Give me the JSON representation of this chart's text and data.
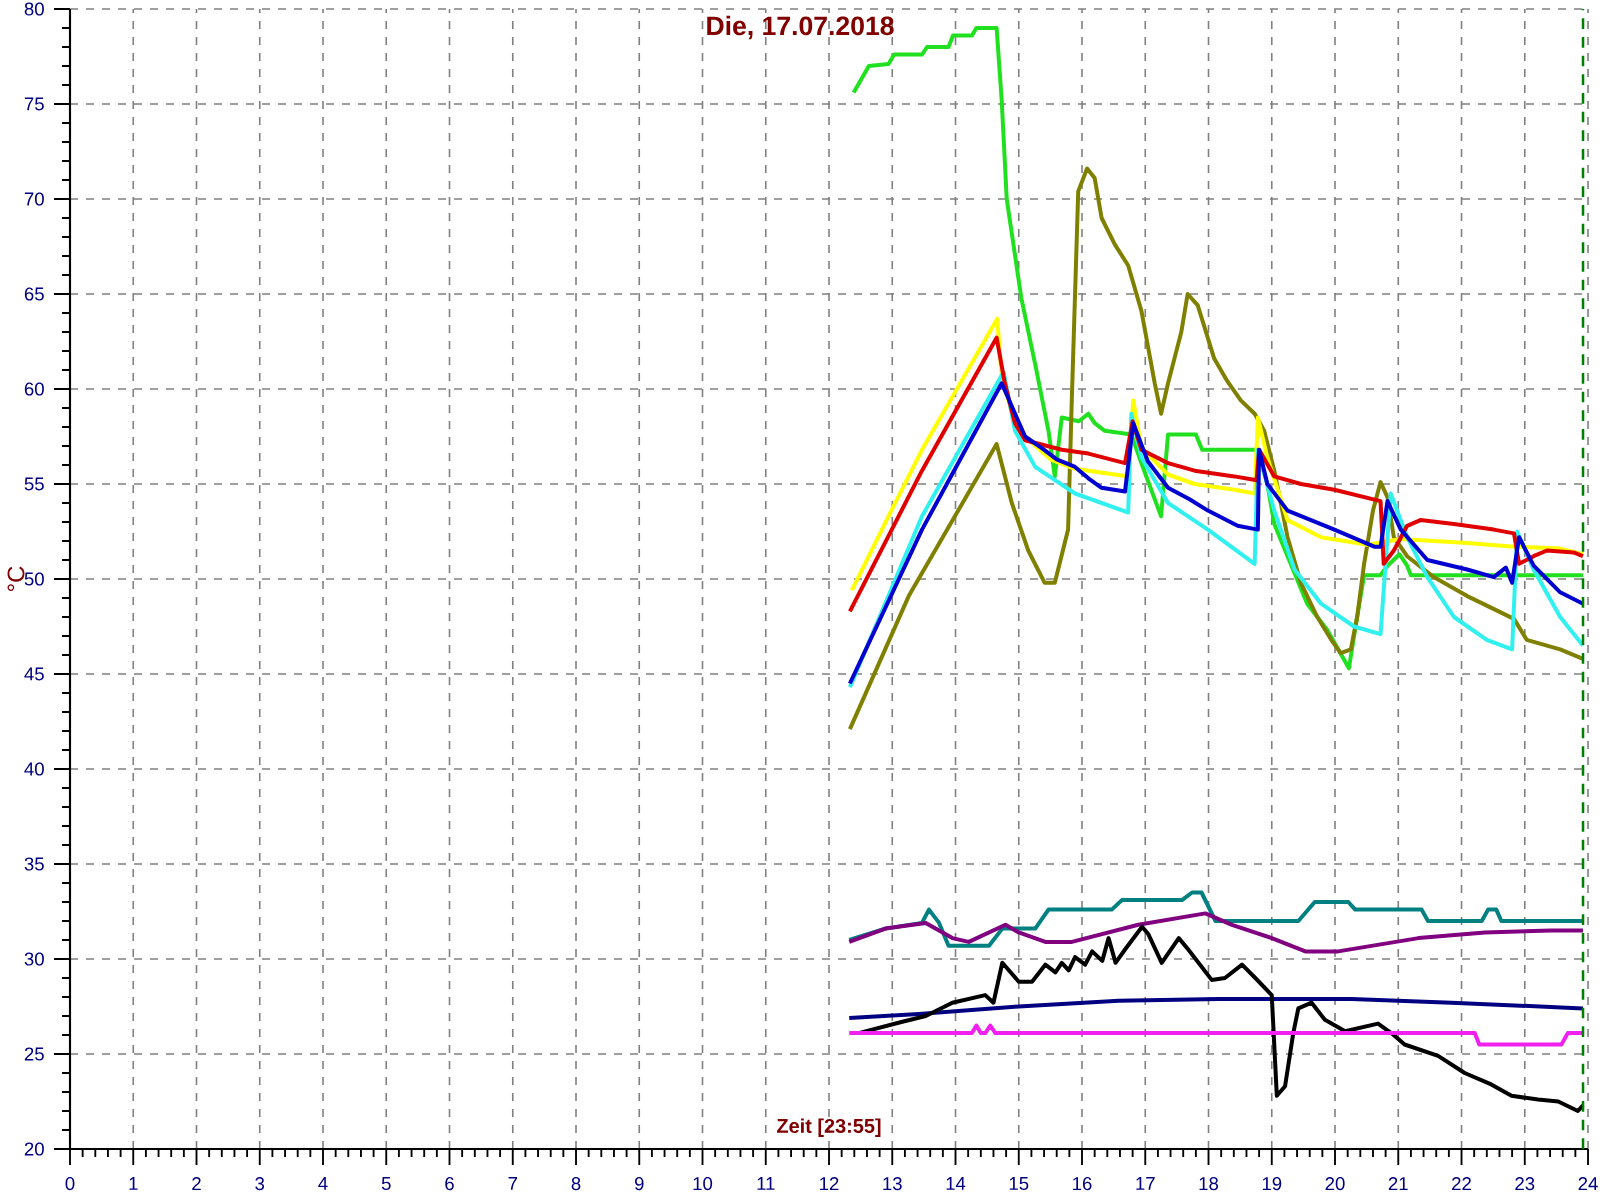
{
  "chart_data": {
    "type": "line",
    "title": "Die, 17.07.2018",
    "xlabel": "Zeit [23:55]",
    "ylabel": "°C",
    "xlim": [
      0,
      24
    ],
    "xticks": [
      0,
      1,
      2,
      3,
      4,
      5,
      6,
      7,
      8,
      9,
      10,
      11,
      12,
      13,
      14,
      15,
      16,
      17,
      18,
      19,
      20,
      21,
      22,
      23,
      24
    ],
    "ylim": [
      20,
      80
    ],
    "yticks": [
      20,
      25,
      30,
      35,
      40,
      45,
      50,
      55,
      60,
      65,
      70,
      75,
      80
    ],
    "grid": true,
    "ref_lines": [
      {
        "axis": "x",
        "value": 23.92,
        "color": "#008000",
        "line_style": "dashed"
      }
    ],
    "series": [
      {
        "color": "#20e020",
        "x": [
          12.39,
          12.63,
          12.94,
          13.03,
          13.47,
          13.55,
          13.89,
          13.96,
          14.26,
          14.33,
          14.65,
          14.73,
          14.81,
          15.04,
          15.26,
          15.47,
          15.57,
          15.68,
          15.95,
          16.1,
          16.2,
          16.36,
          16.78,
          16.95,
          17.25,
          17.36,
          17.8,
          17.9,
          18.78,
          18.93,
          19.04,
          19.25,
          19.56,
          19.88,
          20.22,
          20.32,
          20.46,
          20.72,
          20.83,
          21.02,
          21.14,
          21.2,
          23.92
        ],
        "values": [
          75.6,
          77.0,
          77.1,
          77.6,
          77.6,
          78.0,
          78.0,
          78.6,
          78.6,
          79.0,
          79.0,
          75.2,
          70.0,
          64.8,
          61.3,
          57.8,
          55.4,
          58.5,
          58.3,
          58.7,
          58.2,
          57.8,
          57.6,
          56.0,
          53.3,
          57.6,
          57.6,
          56.8,
          56.8,
          55.0,
          52.9,
          51.2,
          48.7,
          47.3,
          45.3,
          47.4,
          50.2,
          50.2,
          50.7,
          51.3,
          50.7,
          50.2,
          50.2
        ]
      },
      {
        "color": "#808000",
        "x": [
          12.33,
          13.26,
          14.65,
          14.89,
          15.15,
          15.41,
          15.57,
          15.78,
          15.84,
          15.94,
          16.08,
          16.2,
          16.31,
          16.52,
          16.73,
          16.94,
          17.15,
          17.25,
          17.36,
          17.57,
          17.67,
          17.83,
          18.09,
          18.3,
          18.51,
          18.73,
          18.88,
          19.04,
          19.25,
          19.46,
          19.72,
          19.94,
          20.09,
          20.25,
          20.35,
          20.46,
          20.6,
          20.72,
          20.83,
          20.93,
          21.14,
          21.56,
          22.09,
          22.4,
          22.83,
          23.03,
          23.56,
          23.92
        ],
        "values": [
          42.1,
          49.1,
          57.1,
          54.0,
          51.5,
          49.8,
          49.8,
          52.6,
          59.6,
          70.4,
          71.6,
          71.1,
          69.0,
          67.6,
          66.5,
          64.1,
          60.3,
          58.7,
          60.3,
          63.0,
          65.0,
          64.4,
          61.6,
          60.4,
          59.4,
          58.7,
          57.8,
          55.7,
          52.2,
          49.8,
          48.0,
          46.8,
          46.1,
          46.3,
          48.0,
          50.8,
          53.6,
          55.1,
          54.3,
          52.2,
          51.2,
          50.1,
          49.1,
          48.6,
          47.9,
          46.8,
          46.3,
          45.8
        ]
      },
      {
        "color": "#ffff00",
        "x": [
          12.36,
          12.94,
          13.47,
          14.66,
          14.73,
          14.94,
          15.1,
          15.5,
          15.89,
          16.73,
          16.81,
          16.94,
          17.36,
          17.78,
          18.41,
          18.73,
          18.78,
          18.93,
          19.25,
          19.78,
          20.51,
          21.04,
          22.09,
          22.83,
          23.56,
          23.92
        ],
        "values": [
          49.4,
          53.3,
          56.8,
          63.7,
          60.6,
          58.2,
          57.5,
          56.3,
          55.8,
          55.4,
          59.4,
          56.9,
          55.5,
          55.0,
          54.7,
          54.5,
          58.5,
          56.4,
          53.1,
          52.2,
          51.8,
          52.1,
          51.9,
          51.7,
          51.6,
          51.3
        ]
      },
      {
        "color": "#30f0f0",
        "x": [
          12.33,
          13.47,
          14.76,
          14.94,
          15.26,
          15.89,
          16.73,
          16.78,
          16.94,
          17.36,
          17.99,
          18.73,
          18.78,
          19.04,
          19.36,
          19.78,
          20.3,
          20.72,
          20.88,
          21.14,
          21.46,
          21.88,
          22.4,
          22.8,
          22.88,
          23.14,
          23.56,
          23.92
        ],
        "values": [
          44.3,
          53.3,
          60.9,
          57.8,
          55.9,
          54.5,
          53.5,
          58.7,
          56.4,
          54.0,
          52.6,
          50.8,
          56.8,
          53.6,
          50.5,
          48.7,
          47.5,
          47.1,
          54.5,
          52.2,
          50.1,
          48.0,
          46.8,
          46.3,
          52.5,
          50.5,
          48.0,
          46.5
        ]
      },
      {
        "color": "#e00000",
        "x": [
          12.33,
          13.47,
          14.65,
          14.78,
          14.94,
          15.1,
          15.68,
          16.1,
          16.68,
          16.8,
          16.94,
          17.36,
          17.78,
          18.41,
          18.76,
          18.8,
          19.04,
          19.46,
          19.99,
          20.72,
          20.77,
          20.93,
          21.14,
          21.35,
          21.88,
          22.51,
          22.83,
          22.91,
          23.14,
          23.35,
          23.77,
          23.92
        ],
        "values": [
          48.3,
          55.7,
          62.7,
          60.3,
          58.2,
          57.3,
          56.8,
          56.6,
          56.1,
          58.3,
          56.8,
          56.1,
          55.7,
          55.4,
          55.2,
          56.8,
          55.4,
          55.0,
          54.7,
          54.1,
          50.8,
          51.5,
          52.8,
          53.1,
          52.9,
          52.6,
          52.4,
          50.8,
          51.2,
          51.5,
          51.4,
          51.2
        ]
      },
      {
        "color": "#0000d0",
        "x": [
          12.33,
          13.47,
          14.73,
          15.1,
          15.36,
          15.6,
          15.89,
          16.1,
          16.31,
          16.68,
          16.81,
          17.04,
          17.36,
          17.7,
          17.99,
          18.46,
          18.78,
          18.8,
          18.93,
          19.25,
          19.99,
          20.62,
          20.72,
          20.83,
          21.04,
          21.46,
          22.09,
          22.51,
          22.7,
          22.8,
          22.91,
          23.14,
          23.56,
          23.92
        ],
        "values": [
          44.5,
          52.6,
          60.3,
          57.5,
          56.9,
          56.3,
          55.9,
          55.3,
          54.8,
          54.6,
          58.2,
          56.2,
          54.8,
          54.2,
          53.6,
          52.8,
          52.6,
          56.8,
          55.0,
          53.6,
          52.6,
          51.7,
          51.7,
          54.1,
          52.6,
          51.0,
          50.5,
          50.1,
          50.6,
          49.8,
          52.2,
          50.7,
          49.3,
          48.7
        ]
      },
      {
        "color": "#008080",
        "x": [
          12.32,
          12.89,
          13.47,
          13.58,
          13.74,
          13.89,
          14.53,
          14.74,
          15.26,
          15.47,
          16.47,
          16.63,
          17.58,
          17.74,
          17.89,
          18.11,
          19.42,
          19.68,
          20.21,
          20.32,
          21.37,
          21.47,
          22.32,
          22.42,
          22.55,
          22.63,
          23.92
        ],
        "values": [
          31.0,
          31.6,
          31.9,
          32.6,
          31.9,
          30.7,
          30.7,
          31.6,
          31.6,
          32.6,
          32.6,
          33.1,
          33.1,
          33.5,
          33.5,
          32.0,
          32.0,
          33.0,
          33.0,
          32.6,
          32.6,
          32.0,
          32.0,
          32.6,
          32.6,
          32.0,
          32.0
        ]
      },
      {
        "color": "#800080",
        "x": [
          12.32,
          12.89,
          13.53,
          13.95,
          14.21,
          14.79,
          15.0,
          15.42,
          15.84,
          16.89,
          17.95,
          18.37,
          19.0,
          19.53,
          20.05,
          21.32,
          22.37,
          23.42,
          23.92
        ],
        "values": [
          30.9,
          31.6,
          31.9,
          31.1,
          30.9,
          31.8,
          31.4,
          30.9,
          30.9,
          31.8,
          32.4,
          31.8,
          31.1,
          30.4,
          30.4,
          31.1,
          31.4,
          31.5,
          31.5
        ]
      },
      {
        "color": "#000080",
        "x": [
          12.32,
          13.42,
          15.0,
          16.58,
          18.16,
          20.26,
          21.84,
          23.92
        ],
        "values": [
          26.9,
          27.1,
          27.5,
          27.8,
          27.9,
          27.9,
          27.7,
          27.4
        ]
      },
      {
        "color": "#000000",
        "x": [
          12.47,
          13.16,
          13.53,
          13.95,
          14.47,
          14.6,
          14.74,
          15.0,
          15.21,
          15.42,
          15.58,
          15.68,
          15.79,
          15.89,
          16.05,
          16.16,
          16.32,
          16.42,
          16.53,
          16.68,
          16.95,
          17.05,
          17.26,
          17.53,
          17.68,
          18.05,
          18.26,
          18.53,
          18.74,
          19.0,
          19.08,
          19.21,
          19.34,
          19.42,
          19.63,
          19.84,
          20.16,
          20.68,
          20.89,
          21.1,
          21.63,
          22.05,
          22.47,
          22.79,
          23.21,
          23.53,
          23.84,
          23.92
        ],
        "values": [
          26.1,
          26.7,
          27.0,
          27.7,
          28.1,
          27.7,
          29.8,
          28.8,
          28.8,
          29.7,
          29.3,
          29.8,
          29.4,
          30.1,
          29.7,
          30.4,
          29.9,
          31.1,
          29.8,
          30.5,
          31.7,
          31.3,
          29.8,
          31.1,
          30.5,
          28.9,
          29.0,
          29.7,
          29.0,
          28.1,
          22.8,
          23.3,
          26.1,
          27.4,
          27.7,
          26.8,
          26.2,
          26.6,
          26.1,
          25.5,
          24.9,
          24.0,
          23.4,
          22.8,
          22.6,
          22.5,
          22.0,
          22.3
        ]
      },
      {
        "color": "#f020f0",
        "x": [
          12.32,
          14.26,
          14.33,
          14.4,
          14.47,
          14.55,
          14.63,
          22.21,
          22.28,
          23.58,
          23.68,
          23.92
        ],
        "values": [
          26.1,
          26.1,
          26.5,
          26.1,
          26.1,
          26.5,
          26.1,
          26.1,
          25.5,
          25.5,
          26.1,
          26.1
        ]
      }
    ]
  }
}
